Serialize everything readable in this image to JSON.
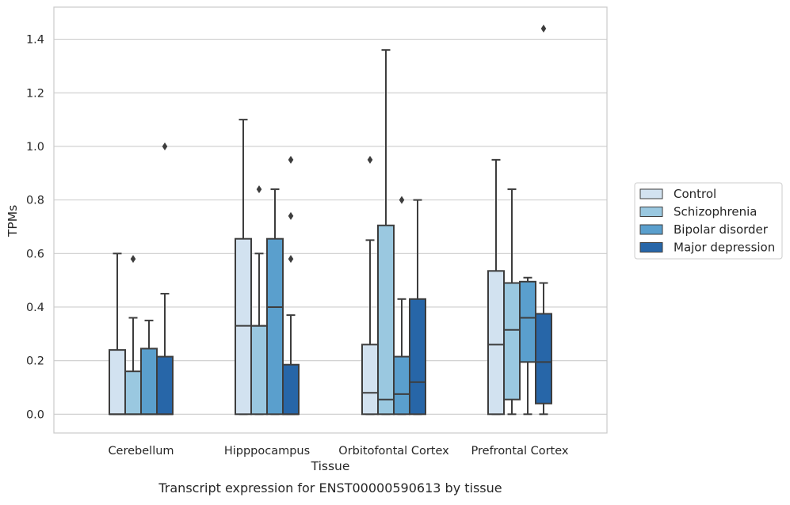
{
  "chart_data": {
    "type": "boxplot",
    "xlabel": "Tissue",
    "ylabel": "TPMs",
    "caption": "Transcript expression for ENST00000590613 by tissue",
    "ylim": [
      -0.07,
      1.52
    ],
    "yticks": [
      0.0,
      0.2,
      0.4,
      0.6,
      0.8,
      1.0,
      1.2,
      1.4
    ],
    "grid": "horizontal",
    "legend_position": "right",
    "categories": [
      "Cerebellum",
      "Hipppocampus",
      "Orbitofontal Cortex",
      "Prefrontal Cortex"
    ],
    "series": [
      {
        "name": "Control",
        "color": "#d2e2f0",
        "boxes": [
          {
            "whisker_low": 0.0,
            "q1": 0.0,
            "median": 0.0,
            "q3": 0.24,
            "whisker_high": 0.6,
            "outliers": []
          },
          {
            "whisker_low": 0.0,
            "q1": 0.0,
            "median": 0.33,
            "q3": 0.655,
            "whisker_high": 1.1,
            "outliers": []
          },
          {
            "whisker_low": 0.0,
            "q1": 0.0,
            "median": 0.08,
            "q3": 0.26,
            "whisker_high": 0.65,
            "outliers": [
              0.95
            ]
          },
          {
            "whisker_low": 0.0,
            "q1": 0.0,
            "median": 0.26,
            "q3": 0.535,
            "whisker_high": 0.95,
            "outliers": []
          }
        ]
      },
      {
        "name": "Schizophrenia",
        "color": "#9ac8e0",
        "boxes": [
          {
            "whisker_low": 0.0,
            "q1": 0.0,
            "median": 0.0,
            "q3": 0.16,
            "whisker_high": 0.36,
            "outliers": [
              0.58
            ]
          },
          {
            "whisker_low": 0.0,
            "q1": 0.0,
            "median": 0.33,
            "q3": 0.33,
            "whisker_high": 0.6,
            "outliers": [
              0.84
            ]
          },
          {
            "whisker_low": 0.0,
            "q1": 0.0,
            "median": 0.055,
            "q3": 0.705,
            "whisker_high": 1.36,
            "outliers": []
          },
          {
            "whisker_low": 0.0,
            "q1": 0.055,
            "median": 0.315,
            "q3": 0.49,
            "whisker_high": 0.84,
            "outliers": []
          }
        ]
      },
      {
        "name": "Bipolar disorder",
        "color": "#5a9fcd",
        "boxes": [
          {
            "whisker_low": 0.0,
            "q1": 0.0,
            "median": 0.0,
            "q3": 0.245,
            "whisker_high": 0.35,
            "outliers": []
          },
          {
            "whisker_low": 0.0,
            "q1": 0.0,
            "median": 0.4,
            "q3": 0.655,
            "whisker_high": 0.84,
            "outliers": []
          },
          {
            "whisker_low": 0.0,
            "q1": 0.0,
            "median": 0.075,
            "q3": 0.215,
            "whisker_high": 0.43,
            "outliers": [
              0.8
            ]
          },
          {
            "whisker_low": 0.0,
            "q1": 0.195,
            "median": 0.36,
            "q3": 0.495,
            "whisker_high": 0.51,
            "outliers": []
          }
        ]
      },
      {
        "name": "Major depression",
        "color": "#2766a8",
        "boxes": [
          {
            "whisker_low": 0.0,
            "q1": 0.0,
            "median": 0.0,
            "q3": 0.215,
            "whisker_high": 0.45,
            "outliers": [
              1.0
            ]
          },
          {
            "whisker_low": 0.0,
            "q1": 0.0,
            "median": 0.0,
            "q3": 0.185,
            "whisker_high": 0.37,
            "outliers": [
              0.58,
              0.74,
              0.95
            ]
          },
          {
            "whisker_low": 0.0,
            "q1": 0.0,
            "median": 0.12,
            "q3": 0.43,
            "whisker_high": 0.8,
            "outliers": []
          },
          {
            "whisker_low": 0.0,
            "q1": 0.04,
            "median": 0.195,
            "q3": 0.375,
            "whisker_high": 0.49,
            "outliers": [
              1.44
            ]
          }
        ]
      }
    ]
  }
}
